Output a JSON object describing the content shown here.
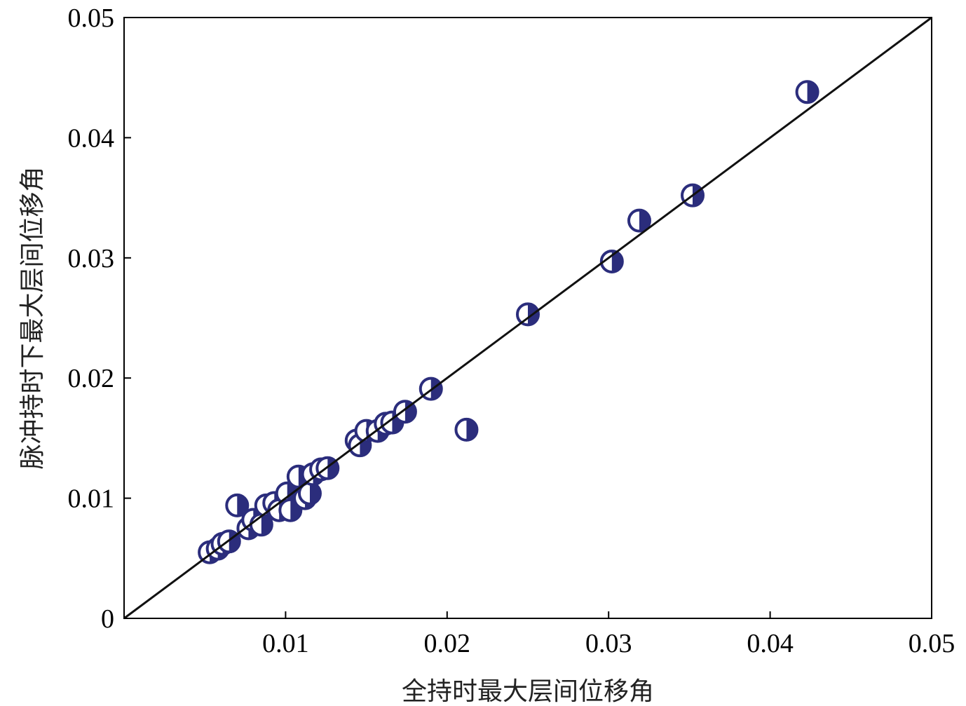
{
  "chart_data": {
    "type": "scatter",
    "title": "",
    "xlabel": "全持时最大层间位移角",
    "ylabel": "脉冲持时下最大层间位移角",
    "xlim": [
      0,
      0.05
    ],
    "ylim": [
      0,
      0.05
    ],
    "x_ticks": [
      {
        "value": 0.01,
        "label": "0.01"
      },
      {
        "value": 0.02,
        "label": "0.02"
      },
      {
        "value": 0.03,
        "label": "0.03"
      },
      {
        "value": 0.04,
        "label": "0.04"
      },
      {
        "value": 0.05,
        "label": "0.05"
      }
    ],
    "y_ticks": [
      {
        "value": 0,
        "label": "0"
      },
      {
        "value": 0.01,
        "label": "0.01"
      },
      {
        "value": 0.02,
        "label": "0.02"
      },
      {
        "value": 0.03,
        "label": "0.03"
      },
      {
        "value": 0.04,
        "label": "0.04"
      },
      {
        "value": 0.05,
        "label": "0.05"
      }
    ],
    "grid": false,
    "marker_color": "#2b2d7c",
    "reference_line": {
      "x": [
        0,
        0.05
      ],
      "y": [
        0,
        0.05
      ],
      "color": "#111111"
    },
    "series": [
      {
        "points": [
          {
            "x": 0.0053,
            "y": 0.0055
          },
          {
            "x": 0.0058,
            "y": 0.0058
          },
          {
            "x": 0.0061,
            "y": 0.0062
          },
          {
            "x": 0.0065,
            "y": 0.0064
          },
          {
            "x": 0.007,
            "y": 0.0094
          },
          {
            "x": 0.0077,
            "y": 0.0075
          },
          {
            "x": 0.008,
            "y": 0.0082
          },
          {
            "x": 0.0085,
            "y": 0.0078
          },
          {
            "x": 0.0088,
            "y": 0.0094
          },
          {
            "x": 0.0093,
            "y": 0.0096
          },
          {
            "x": 0.0096,
            "y": 0.009
          },
          {
            "x": 0.0101,
            "y": 0.0104
          },
          {
            "x": 0.0103,
            "y": 0.009
          },
          {
            "x": 0.0108,
            "y": 0.0118
          },
          {
            "x": 0.0112,
            "y": 0.01
          },
          {
            "x": 0.0115,
            "y": 0.0104
          },
          {
            "x": 0.0117,
            "y": 0.012
          },
          {
            "x": 0.0122,
            "y": 0.0124
          },
          {
            "x": 0.0126,
            "y": 0.0125
          },
          {
            "x": 0.0144,
            "y": 0.0148
          },
          {
            "x": 0.0146,
            "y": 0.0144
          },
          {
            "x": 0.015,
            "y": 0.0156
          },
          {
            "x": 0.0157,
            "y": 0.0156
          },
          {
            "x": 0.0162,
            "y": 0.0162
          },
          {
            "x": 0.0166,
            "y": 0.0163
          },
          {
            "x": 0.0174,
            "y": 0.0172
          },
          {
            "x": 0.019,
            "y": 0.0191
          },
          {
            "x": 0.0212,
            "y": 0.0157
          },
          {
            "x": 0.025,
            "y": 0.0253
          },
          {
            "x": 0.0302,
            "y": 0.0297
          },
          {
            "x": 0.0319,
            "y": 0.0331
          },
          {
            "x": 0.0352,
            "y": 0.0352
          },
          {
            "x": 0.0423,
            "y": 0.0438
          }
        ]
      }
    ]
  }
}
